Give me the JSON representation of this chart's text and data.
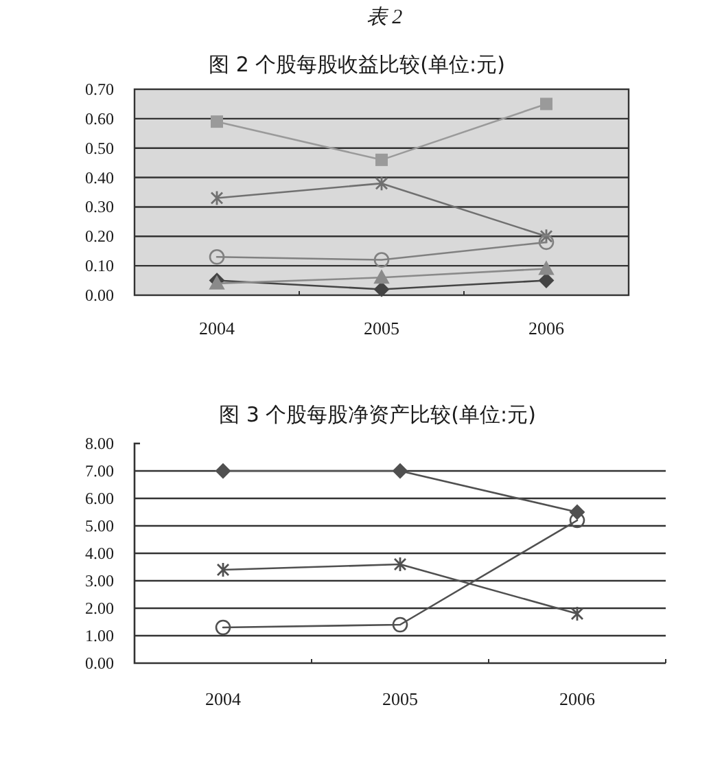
{
  "chart_data": [
    {
      "type": "line",
      "title": "表 2",
      "subtitle": "图 2 个股每股收益比较(单位:元)",
      "categories": [
        "2004",
        "2005",
        "2006"
      ],
      "series": [
        {
          "color": "#444444",
          "marker": "diamond",
          "values": [
            0.05,
            0.02,
            0.05
          ]
        },
        {
          "color": "#9a9a9a",
          "marker": "square",
          "values": [
            0.59,
            0.46,
            0.65
          ]
        },
        {
          "color": "#8a8a8a",
          "marker": "triangle",
          "values": [
            0.04,
            0.06,
            0.09
          ]
        },
        {
          "color": "#707070",
          "marker": "cross",
          "values": [
            0.33,
            0.38,
            0.2
          ]
        },
        {
          "color": "#808080",
          "marker": "circle",
          "values": [
            0.13,
            0.12,
            0.18
          ]
        }
      ],
      "ylim": [
        0,
        0.7
      ],
      "yticks": [
        {
          "value": 0,
          "label": "0.00"
        },
        {
          "value": 0.1,
          "label": "0.10"
        },
        {
          "value": 0.2,
          "label": "0.20"
        },
        {
          "value": 0.3,
          "label": "0.30"
        },
        {
          "value": 0.4,
          "label": "0.40"
        },
        {
          "value": 0.5,
          "label": "0.50"
        },
        {
          "value": 0.6,
          "label": "0.60"
        },
        {
          "value": 0.7,
          "label": "0.70"
        }
      ],
      "grid": "y"
    },
    {
      "type": "line",
      "title": "图 3 个股每股净资产比较(单位:元)",
      "categories": [
        "2004",
        "2005",
        "2006"
      ],
      "series": [
        {
          "color": "#505050",
          "marker": "diamond",
          "values": [
            7,
            7,
            5.5
          ]
        },
        {
          "color": "#505050",
          "marker": "cross",
          "values": [
            3.4,
            3.6,
            1.8
          ]
        },
        {
          "color": "#505050",
          "marker": "circle",
          "values": [
            1.3,
            1.4,
            5.2
          ]
        }
      ],
      "ylim": [
        0,
        8
      ],
      "yticks": [
        {
          "value": 0,
          "label": "0.00"
        },
        {
          "value": 1,
          "label": "1.00"
        },
        {
          "value": 2,
          "label": "2.00"
        },
        {
          "value": 3,
          "label": "3.00"
        },
        {
          "value": 4,
          "label": "4.00"
        },
        {
          "value": 5,
          "label": "5.00"
        },
        {
          "value": 6,
          "label": "6.00"
        },
        {
          "value": 7,
          "label": "7.00"
        },
        {
          "value": 8,
          "label": "8.00"
        }
      ],
      "grid": "y"
    }
  ]
}
